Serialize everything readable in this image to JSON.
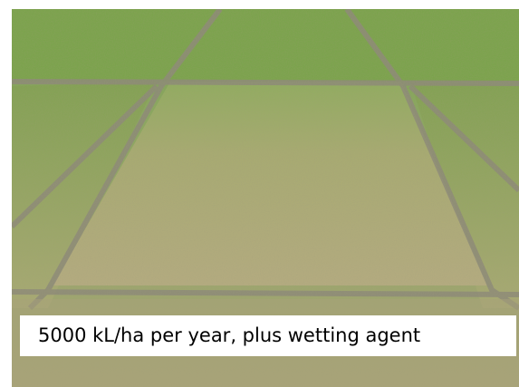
{
  "caption": "5000 kL/ha per year, plus wetting agent"
}
